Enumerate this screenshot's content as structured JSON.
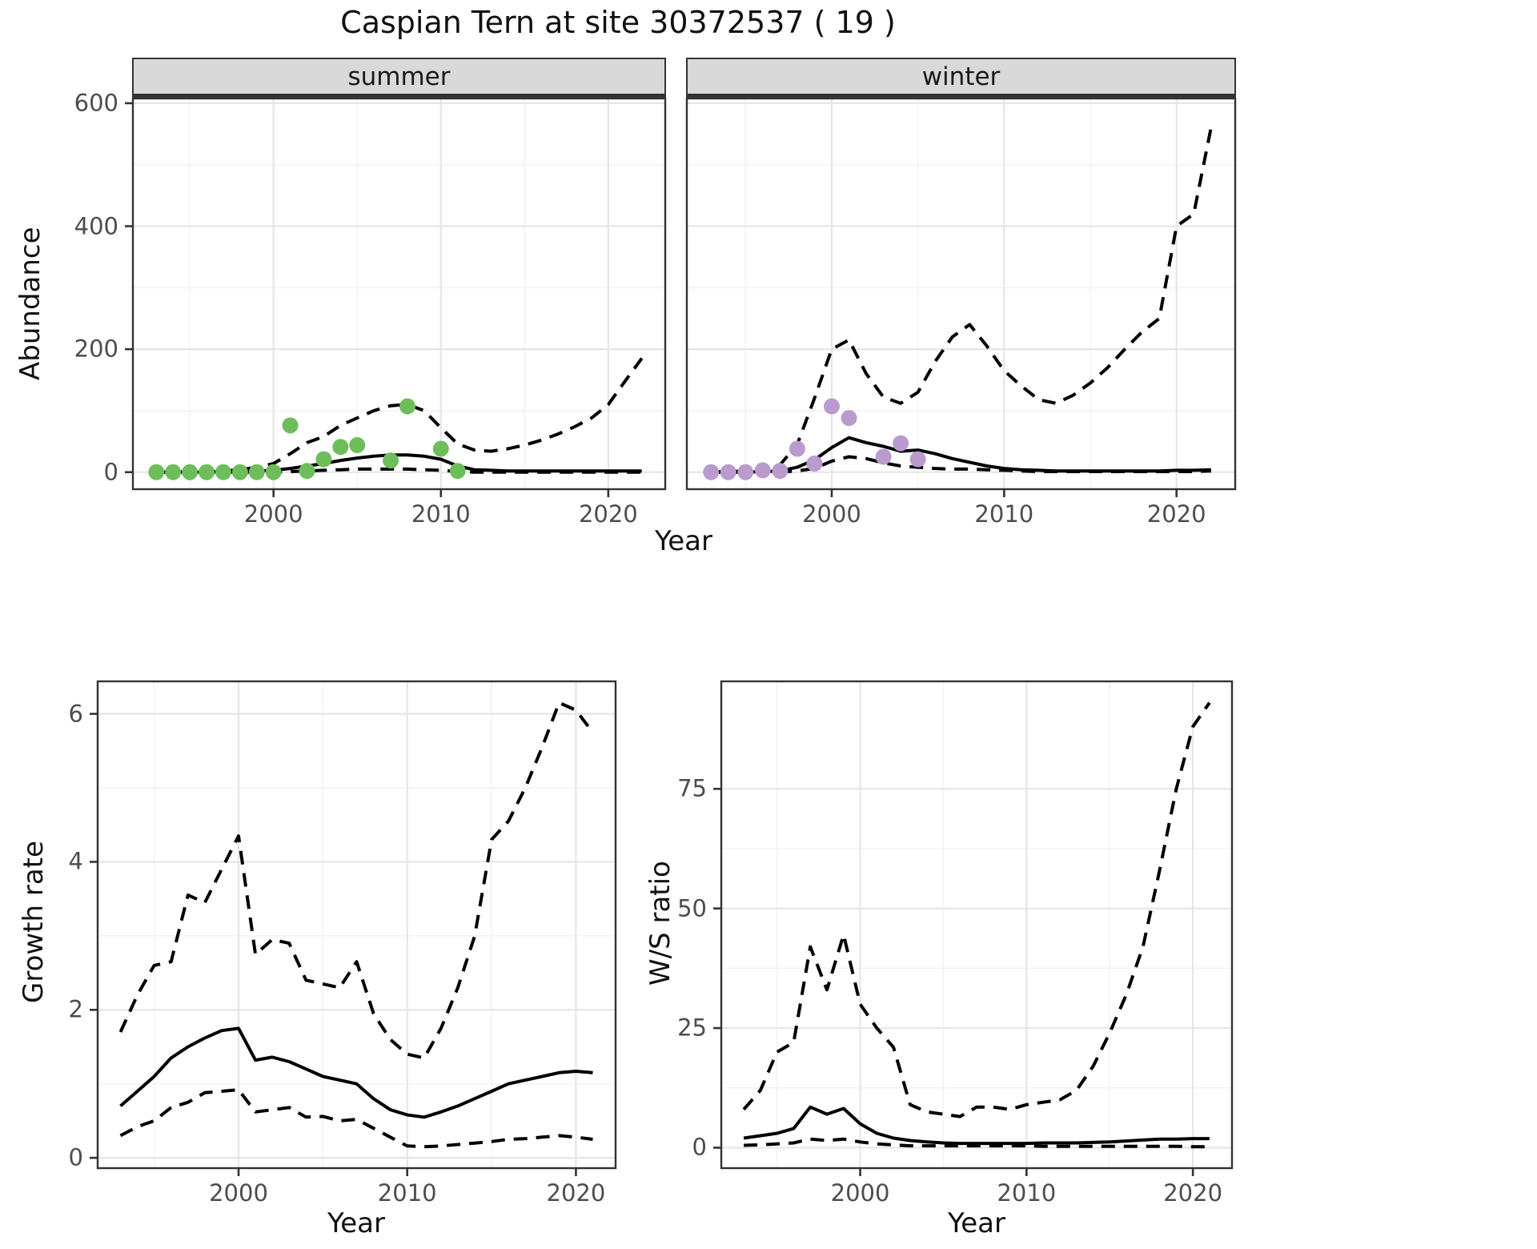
{
  "title": "Caspian Tern at site 30372537 ( 19 )",
  "colors": {
    "summer_points": "#6dbe5b",
    "winter_points": "#b99bce",
    "line": "#000000",
    "strip_fill": "#d9d9d9",
    "panel_border": "#333333",
    "grid_major": "#e6e6e6",
    "grid_minor": "#f3f3f3",
    "tick_label": "#4d4d4d"
  },
  "chart_data": [
    {
      "id": "abundance-summer",
      "type": "line",
      "facet_label": "summer",
      "xlabel": "Year",
      "ylabel": "Abundance",
      "x_ticks": [
        2000,
        2010,
        2020
      ],
      "x_minor": [
        1995,
        2005,
        2015
      ],
      "y_ticks": [
        0,
        200,
        400,
        600
      ],
      "y_minor": [
        100,
        300,
        500
      ],
      "xlim": [
        1991.55,
        2023.45
      ],
      "ylim": [
        -29,
        609
      ],
      "x": [
        1993,
        1994,
        1995,
        1996,
        1997,
        1998,
        1999,
        2000,
        2001,
        2002,
        2003,
        2004,
        2005,
        2006,
        2007,
        2008,
        2009,
        2010,
        2011,
        2012,
        2013,
        2014,
        2015,
        2016,
        2017,
        2018,
        2019,
        2020,
        2021,
        2022
      ],
      "series": [
        {
          "name": "median",
          "style": "solid",
          "values": [
            0,
            0,
            0,
            0,
            1,
            1,
            2,
            3,
            6,
            10,
            14,
            19,
            23,
            26,
            28,
            28,
            26,
            21,
            10,
            4,
            3,
            2,
            2,
            2,
            2,
            2,
            2,
            2,
            2,
            2
          ]
        },
        {
          "name": "ci_upper_97_5",
          "style": "dashed",
          "values": [
            0,
            0,
            1,
            1,
            2,
            4,
            8,
            14,
            30,
            48,
            58,
            76,
            88,
            100,
            108,
            110,
            100,
            72,
            46,
            36,
            34,
            38,
            44,
            52,
            62,
            74,
            88,
            110,
            148,
            185
          ]
        },
        {
          "name": "ci_lower_2_5",
          "style": "dashed",
          "values": [
            0,
            0,
            0,
            0,
            0,
            0,
            0,
            0,
            1,
            2,
            3,
            4,
            5,
            5,
            5,
            5,
            4,
            3,
            1,
            0,
            0,
            0,
            0,
            0,
            0,
            0,
            0,
            0,
            0,
            0
          ]
        }
      ],
      "points": {
        "name": "observed-counts-summer",
        "color": "#6dbe5b",
        "x": [
          1993,
          1994,
          1995,
          1996,
          1997,
          1998,
          1999,
          2000,
          2001,
          2002,
          2003,
          2004,
          2005,
          2007,
          2008,
          2010,
          2011
        ],
        "y": [
          0,
          0,
          0,
          0,
          0,
          0,
          0,
          0,
          76,
          2,
          21,
          41,
          44,
          19,
          107,
          38,
          2
        ]
      }
    },
    {
      "id": "abundance-winter",
      "type": "line",
      "facet_label": "winter",
      "ylabel": "Abundance",
      "x_ticks": [
        2000,
        2010,
        2020
      ],
      "x_minor": [
        1995,
        2005,
        2015
      ],
      "y_ticks": [
        0,
        200,
        400,
        600
      ],
      "y_minor": [
        100,
        300,
        500
      ],
      "xlim": [
        1991.55,
        2023.45
      ],
      "ylim": [
        -29,
        609
      ],
      "x": [
        1993,
        1994,
        1995,
        1996,
        1997,
        1998,
        1999,
        2000,
        2001,
        2002,
        2003,
        2004,
        2005,
        2006,
        2007,
        2008,
        2009,
        2010,
        2011,
        2012,
        2013,
        2014,
        2015,
        2016,
        2017,
        2018,
        2019,
        2020,
        2021,
        2022
      ],
      "series": [
        {
          "name": "median",
          "style": "solid",
          "values": [
            0,
            0,
            0,
            1,
            2,
            8,
            20,
            40,
            56,
            48,
            42,
            34,
            36,
            30,
            22,
            16,
            10,
            6,
            4,
            3,
            2,
            2,
            2,
            2,
            2,
            2,
            2,
            3,
            3,
            4
          ]
        },
        {
          "name": "ci_upper_97_5",
          "style": "dashed",
          "values": [
            1,
            1,
            2,
            6,
            12,
            45,
            120,
            200,
            215,
            160,
            122,
            112,
            130,
            180,
            220,
            240,
            205,
            165,
            140,
            118,
            112,
            125,
            145,
            170,
            200,
            228,
            250,
            400,
            420,
            560
          ]
        },
        {
          "name": "ci_lower_2_5",
          "style": "dashed",
          "values": [
            0,
            0,
            0,
            0,
            0,
            2,
            6,
            18,
            25,
            22,
            15,
            10,
            8,
            6,
            5,
            5,
            4,
            3,
            2,
            1,
            1,
            1,
            1,
            1,
            1,
            1,
            1,
            1,
            1,
            2
          ]
        }
      ],
      "points": {
        "name": "observed-counts-winter",
        "color": "#b99bce",
        "x": [
          1993,
          1994,
          1995,
          1996,
          1997,
          1998,
          1999,
          2000,
          2001,
          2003,
          2004,
          2005
        ],
        "y": [
          0,
          0,
          0,
          3,
          2,
          38,
          14,
          107,
          88,
          25,
          47,
          21
        ]
      }
    },
    {
      "id": "growth-rate",
      "type": "line",
      "xlabel": "Year",
      "ylabel": "Growth rate",
      "x_ticks": [
        2000,
        2010,
        2020
      ],
      "x_minor": [
        1995,
        2005,
        2015
      ],
      "y_ticks": [
        0,
        2,
        4,
        6
      ],
      "y_minor": [
        1,
        3,
        5
      ],
      "xlim": [
        1991.6,
        2022.4
      ],
      "ylim": [
        -0.15,
        6.45
      ],
      "x": [
        1993,
        1994,
        1995,
        1996,
        1997,
        1998,
        1999,
        2000,
        2001,
        2002,
        2003,
        2004,
        2005,
        2006,
        2007,
        2008,
        2009,
        2010,
        2011,
        2012,
        2013,
        2014,
        2015,
        2016,
        2017,
        2018,
        2019,
        2020,
        2021
      ],
      "series": [
        {
          "name": "median",
          "style": "solid",
          "values": [
            0.7,
            0.9,
            1.1,
            1.35,
            1.5,
            1.62,
            1.72,
            1.75,
            1.32,
            1.36,
            1.3,
            1.2,
            1.1,
            1.05,
            1.0,
            0.8,
            0.65,
            0.58,
            0.55,
            0.62,
            0.7,
            0.8,
            0.9,
            1.0,
            1.05,
            1.1,
            1.15,
            1.17,
            1.15
          ]
        },
        {
          "name": "ci_upper_97_5",
          "style": "dashed",
          "values": [
            1.7,
            2.2,
            2.6,
            2.65,
            3.55,
            3.45,
            3.9,
            4.35,
            2.75,
            2.95,
            2.9,
            2.4,
            2.35,
            2.3,
            2.65,
            1.95,
            1.6,
            1.4,
            1.35,
            1.75,
            2.3,
            3.0,
            4.3,
            4.55,
            5.0,
            5.55,
            6.15,
            6.05,
            5.75
          ]
        },
        {
          "name": "ci_lower_2_5",
          "style": "dashed",
          "values": [
            0.3,
            0.42,
            0.5,
            0.68,
            0.75,
            0.88,
            0.9,
            0.92,
            0.62,
            0.65,
            0.68,
            0.55,
            0.56,
            0.5,
            0.52,
            0.4,
            0.28,
            0.16,
            0.15,
            0.16,
            0.18,
            0.2,
            0.22,
            0.25,
            0.26,
            0.28,
            0.3,
            0.28,
            0.25
          ]
        }
      ]
    },
    {
      "id": "ws-ratio",
      "type": "line",
      "xlabel": "Year",
      "ylabel": "W/S ratio",
      "x_ticks": [
        2000,
        2010,
        2020
      ],
      "x_minor": [
        1995,
        2005,
        2015
      ],
      "y_ticks": [
        0,
        25,
        50,
        75
      ],
      "y_minor": [
        12.5,
        37.5,
        62.5
      ],
      "xlim": [
        1991.6,
        2022.4
      ],
      "ylim": [
        -4.44,
        97.64
      ],
      "x": [
        1993,
        1994,
        1995,
        1996,
        1997,
        1998,
        1999,
        2000,
        2001,
        2002,
        2003,
        2004,
        2005,
        2006,
        2007,
        2008,
        2009,
        2010,
        2011,
        2012,
        2013,
        2014,
        2015,
        2016,
        2017,
        2018,
        2019,
        2020,
        2021
      ],
      "series": [
        {
          "name": "median",
          "style": "solid",
          "values": [
            2,
            2.5,
            3,
            4,
            8.5,
            7,
            8.2,
            5,
            3,
            2,
            1.5,
            1.2,
            1,
            0.9,
            0.9,
            0.9,
            0.9,
            0.9,
            1,
            1,
            1,
            1.1,
            1.2,
            1.4,
            1.6,
            1.8,
            1.8,
            1.9,
            1.9
          ]
        },
        {
          "name": "ci_upper_97_5",
          "style": "dashed",
          "values": [
            8,
            12,
            20,
            22,
            42,
            33,
            44.5,
            30,
            25,
            21,
            9,
            7.5,
            7,
            6.5,
            8.5,
            8.5,
            8,
            9,
            9.5,
            10,
            12,
            17,
            24,
            32,
            42,
            58,
            75,
            88,
            93
          ]
        },
        {
          "name": "ci_lower_2_5",
          "style": "dashed",
          "values": [
            0.5,
            0.6,
            0.8,
            1,
            1.8,
            1.5,
            1.8,
            1.2,
            0.8,
            0.6,
            0.4,
            0.4,
            0.4,
            0.4,
            0.4,
            0.4,
            0.4,
            0.4,
            0.3,
            0.3,
            0.3,
            0.3,
            0.3,
            0.3,
            0.3,
            0.3,
            0.3,
            0.2,
            0.2
          ]
        }
      ]
    }
  ]
}
